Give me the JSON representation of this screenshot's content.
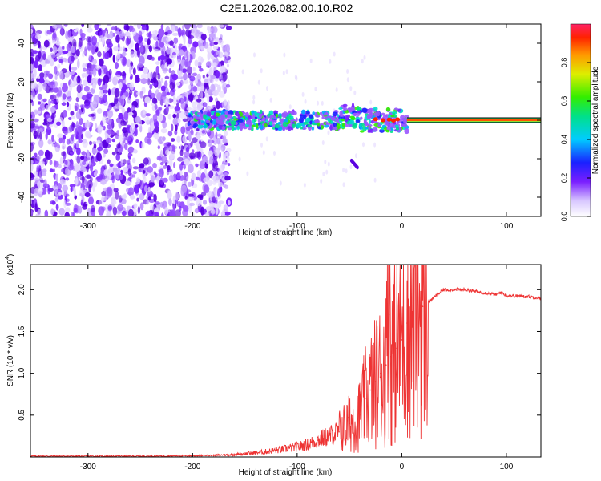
{
  "title": "C2E1.2026.082.00.10.R02",
  "chart_data": [
    {
      "type": "heatmap",
      "xlabel": "Height of straight line (km)",
      "ylabel": "Frequency (Hz)",
      "xlim": [
        -355,
        133
      ],
      "ylim": [
        -50,
        50
      ],
      "xticks": [
        -300,
        -200,
        -100,
        0,
        100
      ],
      "yticks": [
        -40,
        -20,
        0,
        20,
        40
      ],
      "colorbar": {
        "label": "Normalized spectral amplitude",
        "ticks": [
          "0.0",
          "0.2",
          "0.4",
          "0.6",
          "0.8"
        ],
        "range": [
          0,
          1
        ]
      },
      "regions": [
        {
          "name": "noise",
          "x": [
            -355,
            -185
          ],
          "freq": [
            -50,
            50
          ],
          "amplitude": 0.1
        },
        {
          "name": "signal-band",
          "x": [
            -205,
            5
          ],
          "freq": [
            -5,
            5
          ],
          "amplitude": 0.3
        },
        {
          "name": "carrier-line",
          "x": [
            5,
            133
          ],
          "freq": [
            0,
            0
          ],
          "amplitude": 1.0
        }
      ]
    },
    {
      "type": "line",
      "xlabel": "Height of straight line (km)",
      "ylabel": "SNR (10 * v/v)",
      "multiplier": "(x10",
      "multiplier_exp": "4",
      "multiplier_close": ")",
      "xlim": [
        -355,
        133
      ],
      "ylim": [
        0,
        2.3
      ],
      "xticks": [
        -300,
        -200,
        -100,
        0,
        100
      ],
      "yticks": [
        "0.5",
        "1.0",
        "1.5",
        "2.0"
      ],
      "series": [
        {
          "name": "SNR",
          "color": "#ee3333",
          "x": [
            -355,
            -300,
            -250,
            -200,
            -180,
            -160,
            -140,
            -120,
            -100,
            -90,
            -80,
            -70,
            -60,
            -50,
            -40,
            -35,
            -30,
            -25,
            -20,
            -15,
            -12,
            -10,
            -5,
            0,
            5,
            10,
            20,
            30,
            40,
            60,
            80,
            90,
            95,
            100,
            120,
            133
          ],
          "y": [
            0.01,
            0.01,
            0.01,
            0.015,
            0.02,
            0.03,
            0.05,
            0.08,
            0.12,
            0.15,
            0.2,
            0.25,
            0.3,
            0.4,
            0.5,
            0.7,
            0.8,
            0.9,
            1.0,
            1.1,
            1.7,
            1.2,
            1.3,
            1.4,
            1.6,
            1.7,
            1.8,
            1.9,
            2.0,
            2.0,
            1.96,
            1.94,
            1.97,
            1.93,
            1.92,
            1.9
          ]
        }
      ]
    }
  ]
}
